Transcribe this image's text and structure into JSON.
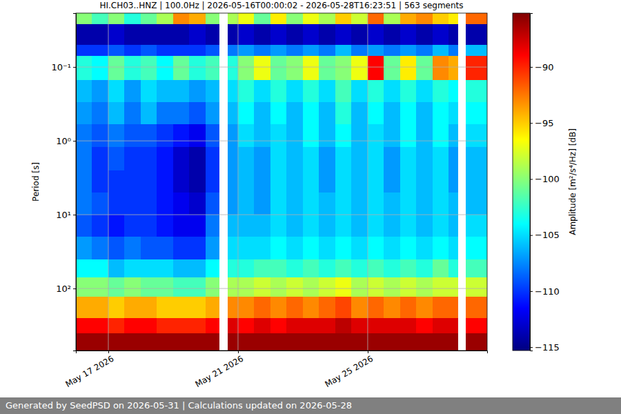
{
  "chart_data": {
    "type": "heatmap",
    "title": "HI.CH03..HNZ | 100.0Hz | 2026-05-16T00:00:02 - 2026-05-28T16:23:51 | 563 segments",
    "y_label": "Period [s]",
    "footer": "Generated by SeedPSD on 2026-05-31 | Calculations updated on 2026-05-28",
    "log": "y",
    "grid": true,
    "xlim": [
      "2026-05-16T00:00:02",
      "2026-05-28T16:23:51"
    ],
    "xticks": [
      {
        "value": "2026-05-17T00:00:00",
        "label": "May 17 2026"
      },
      {
        "value": "2026-05-21T00:00:00",
        "label": "May 21 2026"
      },
      {
        "value": "2026-05-25T00:00:00",
        "label": "May 25 2026"
      }
    ],
    "ylim": [
      0.0186,
      692
    ],
    "yticks": [
      {
        "value": 0.1,
        "label": "10⁻¹"
      },
      {
        "value": 1,
        "label": "10⁰"
      },
      {
        "value": 10,
        "label": "10¹"
      },
      {
        "value": 100,
        "label": "10²"
      }
    ],
    "x_edges": [
      "2026-05-16T00:00:02",
      "2026-05-16T12:00:00",
      "2026-05-17T00:00:00",
      "2026-05-17T12:00:00",
      "2026-05-18T00:00:00",
      "2026-05-18T12:00:00",
      "2026-05-19T00:00:00",
      "2026-05-19T12:00:00",
      "2026-05-20T00:00:00",
      "2026-05-20T10:00:00",
      "2026-05-20T16:30:00",
      "2026-05-21T00:00:00",
      "2026-05-21T12:00:00",
      "2026-05-22T00:00:00",
      "2026-05-22T12:00:00",
      "2026-05-23T00:00:00",
      "2026-05-23T12:00:00",
      "2026-05-24T00:00:00",
      "2026-05-24T12:00:00",
      "2026-05-25T00:00:00",
      "2026-05-25T12:00:00",
      "2026-05-26T00:00:00",
      "2026-05-26T12:00:00",
      "2026-05-27T00:00:00",
      "2026-05-27T12:00:00",
      "2026-05-27T18:30:00",
      "2026-05-28T00:40:00",
      "2026-05-28T16:23:51"
    ],
    "y_edges": [
      0.0186,
      0.026,
      0.05,
      0.07,
      0.15,
      0.3,
      0.6,
      1.2,
      2.5,
      5,
      10,
      20,
      40,
      70,
      130,
      250,
      400,
      692
    ],
    "values": [
      [
        -100,
        -102,
        -100,
        -103,
        -101,
        -99,
        -93,
        -94,
        -100,
        null,
        -99,
        -97,
        -101,
        -96,
        -100,
        -97,
        -99,
        -95,
        -98,
        -92,
        -99,
        -94,
        -93,
        -95,
        -96,
        null,
        -92
      ],
      [
        -114,
        -114,
        -113,
        -114,
        -114,
        -114,
        -114,
        -113,
        -114,
        null,
        -114,
        -113,
        -114,
        -113,
        -114,
        -113,
        -114,
        -113,
        -114,
        -113,
        -114,
        -113,
        -114,
        -113,
        -114,
        null,
        -114
      ],
      [
        -110,
        -110,
        -109,
        -110,
        -109,
        -110,
        -110,
        -110,
        -109,
        null,
        -108,
        -107,
        -108,
        -107,
        -108,
        -107,
        -108,
        -106,
        -108,
        -107,
        -108,
        -107,
        -108,
        -106,
        -108,
        null,
        -106
      ],
      [
        -103,
        -104,
        -101,
        -103,
        -102,
        -104,
        -101,
        -103,
        -102,
        null,
        -103,
        -100,
        -97,
        -101,
        -100,
        -97,
        -101,
        -100,
        -97,
        -89,
        -101,
        -96,
        -101,
        -93,
        -94,
        null,
        -90
      ],
      [
        -106,
        -107,
        -105,
        -107,
        -105,
        -106,
        -106,
        -107,
        -106,
        null,
        -105,
        -103,
        -105,
        -103,
        -105,
        -103,
        -105,
        -102,
        -105,
        -103,
        -105,
        -103,
        -105,
        -103,
        -104,
        null,
        -103
      ],
      [
        -107,
        -108,
        -106,
        -108,
        -106,
        -108,
        -108,
        -109,
        -107,
        null,
        -106,
        -104,
        -106,
        -104,
        -106,
        -104,
        -106,
        -103,
        -106,
        -104,
        -106,
        -104,
        -106,
        -104,
        -105,
        null,
        -104
      ],
      [
        -108,
        -109,
        -108,
        -109,
        -109,
        -110,
        -111,
        -112,
        -109,
        null,
        -107,
        -105,
        -106,
        -105,
        -106,
        -104,
        -106,
        -104,
        -106,
        -105,
        -106,
        -104,
        -106,
        -104,
        -106,
        null,
        -105
      ],
      [
        -108,
        -110,
        -109,
        -110,
        -110,
        -111,
        -113,
        -114,
        -110,
        null,
        -107,
        -106,
        -107,
        -105,
        -106,
        -105,
        -107,
        -105,
        -106,
        -105,
        -107,
        -105,
        -106,
        -105,
        -107,
        null,
        -106
      ],
      [
        -108,
        -110,
        -110,
        -110,
        -110,
        -111,
        -113,
        -114,
        -110,
        null,
        -107,
        -106,
        -107,
        -105,
        -106,
        -105,
        -107,
        -105,
        -106,
        -105,
        -107,
        -105,
        -106,
        -105,
        -107,
        null,
        -106
      ],
      [
        -108,
        -109,
        -110,
        -110,
        -110,
        -111,
        -112,
        -113,
        -109,
        null,
        -107,
        -106,
        -107,
        -105,
        -106,
        -105,
        -106,
        -105,
        -106,
        -105,
        -106,
        -105,
        -106,
        -105,
        -106,
        null,
        -106
      ],
      [
        -109,
        -110,
        -111,
        -110,
        -110,
        -111,
        -112,
        -112,
        -108,
        null,
        -106,
        -106,
        -106,
        -105,
        -106,
        -105,
        -106,
        -105,
        -106,
        -105,
        -106,
        -105,
        -106,
        -105,
        -106,
        null,
        -105
      ],
      [
        -107,
        -108,
        -109,
        -108,
        -109,
        -109,
        -110,
        -110,
        -107,
        null,
        -105,
        -105,
        -105,
        -104,
        -105,
        -104,
        -105,
        -104,
        -105,
        -104,
        -105,
        -104,
        -105,
        -104,
        -105,
        null,
        -104
      ],
      [
        -104,
        -104,
        -106,
        -105,
        -105,
        -105,
        -106,
        -106,
        -104,
        null,
        -103,
        -103,
        -102,
        -102,
        -103,
        -102,
        -103,
        -102,
        -103,
        -102,
        -103,
        -102,
        -103,
        -101,
        -103,
        null,
        -102
      ],
      [
        -100,
        -100,
        -101,
        -100,
        -101,
        -101,
        -102,
        -102,
        -100,
        null,
        -99,
        -99,
        -98,
        -99,
        -98,
        -99,
        -98,
        -97,
        -99,
        -98,
        -99,
        -98,
        -99,
        -98,
        -98,
        null,
        -98
      ],
      [
        -94,
        -94,
        -95,
        -94,
        -94,
        -95,
        -95,
        -95,
        -94,
        null,
        -93,
        -93,
        -92,
        -93,
        -92,
        -93,
        -92,
        -91,
        -93,
        -92,
        -93,
        -92,
        -93,
        -92,
        -92,
        null,
        -92
      ],
      [
        -89,
        -89,
        -90,
        -89,
        -89,
        -90,
        -90,
        -90,
        -89,
        null,
        -88,
        -89,
        -88,
        -89,
        -88,
        -88,
        -88,
        -87,
        -88,
        -88,
        -88,
        -88,
        -89,
        -88,
        -88,
        null,
        -89
      ],
      [
        -86,
        -86,
        -86,
        -86,
        -86,
        -86,
        -86,
        -86,
        -86,
        null,
        -86,
        -86,
        -86,
        -86,
        -86,
        -86,
        -86,
        -86,
        -86,
        -86,
        -86,
        -86,
        -86,
        -86,
        -86,
        null,
        -86
      ]
    ],
    "colorbar": {
      "label": "Amplitude [m²/s⁴/Hz] [dB]",
      "range": [
        -115.3,
        -85.2
      ],
      "ticks": [
        {
          "value": -90,
          "label": "−90"
        },
        {
          "value": -95,
          "label": "−95"
        },
        {
          "value": -100,
          "label": "−100"
        },
        {
          "value": -105,
          "label": "−105"
        },
        {
          "value": -110,
          "label": "−110"
        },
        {
          "value": -115,
          "label": "−115"
        }
      ]
    }
  }
}
